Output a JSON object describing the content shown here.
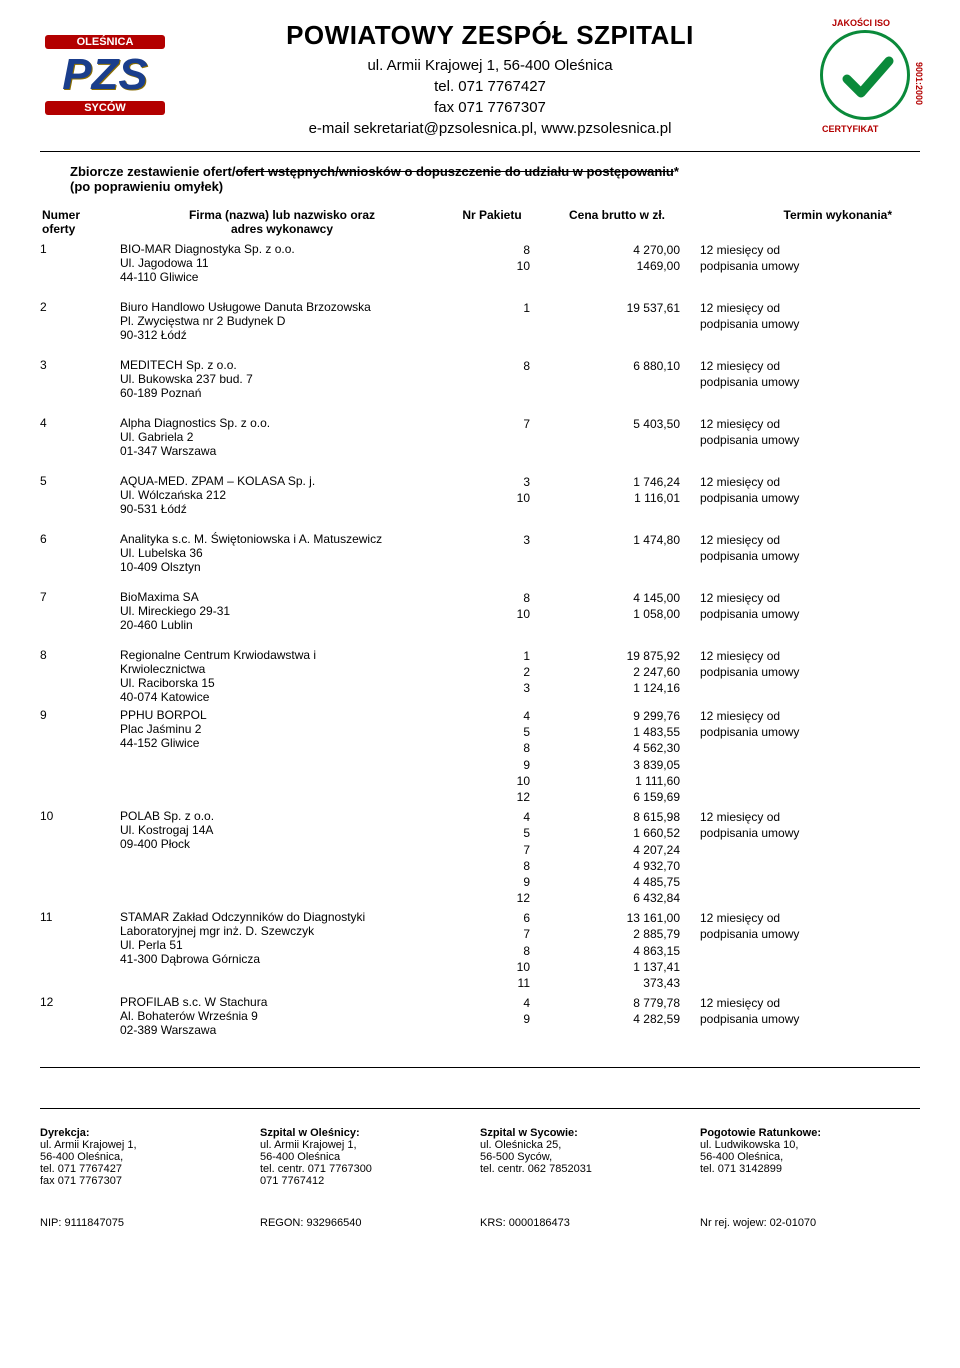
{
  "header": {
    "org_name": "POWIATOWY ZESPÓŁ SZPITALI",
    "address": "ul. Armii Krajowej 1, 56-400 Oleśnica",
    "tel": "tel. 071 7767427",
    "fax": "fax 071 7767307",
    "email_web": "e-mail sekretariat@pzsolesnica.pl, www.pzsolesnica.pl",
    "logo_left": {
      "top_banner": "OLEŚNICA",
      "main": "PZS",
      "bottom_banner": "SYCÓW"
    },
    "logo_right": {
      "top_text": "JAKOŚCI ISO",
      "side_text": "9001:2000",
      "bottom_text": "CERTYFIKAT",
      "check_color": "#0a8a3a"
    }
  },
  "title": {
    "prefix": "Zbiorcze zestawienie ofert/",
    "struck": "ofert wstępnych/wniosków o dopuszczenie do udziału w postępowaniu",
    "suffix": "*",
    "line2": "(po poprawieniu omyłek)"
  },
  "columns": {
    "num1": "Numer",
    "num2": "oferty",
    "firm1": "Firma (nazwa) lub nazwisko oraz",
    "firm2": "adres wykonawcy",
    "pak": "Nr Pakietu",
    "price": "Cena brutto w zł.",
    "term": "Termin wykonania*"
  },
  "term_text": "12 miesięcy od\npodpisania umowy",
  "offers": [
    {
      "num": "1",
      "firm": [
        "BIO-MAR Diagnostyka Sp. z o.o.",
        "Ul. Jagodowa 11",
        "44-110 Gliwice"
      ],
      "lines": [
        [
          "8",
          "4 270,00"
        ],
        [
          "10",
          "1469,00"
        ]
      ]
    },
    {
      "num": "2",
      "firm": [
        "Biuro Handlowo Usługowe Danuta Brzozowska",
        "Pl. Zwycięstwa nr 2 Budynek D",
        "90-312 Łódź"
      ],
      "lines": [
        [
          "1",
          "19 537,61"
        ]
      ]
    },
    {
      "num": "3",
      "firm": [
        "MEDITECH Sp. z o.o.",
        "Ul. Bukowska 237 bud. 7",
        "60-189 Poznań"
      ],
      "lines": [
        [
          "8",
          "6 880,10"
        ]
      ]
    },
    {
      "num": "4",
      "firm": [
        "Alpha Diagnostics Sp. z o.o.",
        "Ul. Gabriela 2",
        "01-347 Warszawa"
      ],
      "lines": [
        [
          "7",
          "5 403,50"
        ]
      ]
    },
    {
      "num": "5",
      "firm": [
        "AQUA-MED. ZPAM – KOLASA Sp. j.",
        "Ul. Wólczańska 212",
        "90-531 Łódź"
      ],
      "lines": [
        [
          "3",
          "1 746,24"
        ],
        [
          "10",
          "1 116,01"
        ]
      ]
    },
    {
      "num": "6",
      "firm": [
        "Analityka s.c. M. Świętoniowska i A. Matuszewicz",
        "Ul. Lubelska 36",
        "10-409 Olsztyn"
      ],
      "lines": [
        [
          "3",
          "1 474,80"
        ]
      ]
    },
    {
      "num": "7",
      "firm": [
        "BioMaxima SA",
        "Ul. Mireckiego 29-31",
        "20-460 Lublin"
      ],
      "lines": [
        [
          "8",
          "4 145,00"
        ],
        [
          "10",
          "1 058,00"
        ]
      ]
    },
    {
      "num": "8",
      "firm": [
        "Regionalne Centrum Krwiodawstwa i",
        "Krwiolecznictwa",
        "Ul. Raciborska 15",
        "40-074 Katowice"
      ],
      "lines": [
        [
          "1",
          "19 875,92"
        ],
        [
          "2",
          "2 247,60"
        ],
        [
          "3",
          "1 124,16"
        ]
      ]
    },
    {
      "num": "9",
      "firm": [
        "PPHU BORPOL",
        "Plac Jaśminu 2",
        "44-152 Gliwice"
      ],
      "lines": [
        [
          "4",
          "9 299,76"
        ],
        [
          "5",
          "1 483,55"
        ],
        [
          "8",
          "4 562,30"
        ],
        [
          "9",
          "3 839,05"
        ],
        [
          "10",
          "1 111,60"
        ],
        [
          "12",
          "6 159,69"
        ]
      ]
    },
    {
      "num": "10",
      "firm": [
        "POLAB Sp. z o.o.",
        "Ul. Kostrogaj 14A",
        "09-400 Płock"
      ],
      "lines": [
        [
          "4",
          "8 615,98"
        ],
        [
          "5",
          "1 660,52"
        ],
        [
          "7",
          "4 207,24"
        ],
        [
          "8",
          "4 932,70"
        ],
        [
          "9",
          "4 485,75"
        ],
        [
          "12",
          "6 432,84"
        ]
      ]
    },
    {
      "num": "11",
      "firm": [
        "STAMAR Zakład Odczynników do Diagnostyki",
        "Laboratoryjnej mgr inż. D. Szewczyk",
        "Ul. Perla 51",
        "41-300 Dąbrowa Górnicza"
      ],
      "lines": [
        [
          "6",
          "13 161,00"
        ],
        [
          "7",
          "2 885,79"
        ],
        [
          "8",
          "4 863,15"
        ],
        [
          "10",
          "1 137,41"
        ],
        [
          "11",
          "373,43"
        ]
      ]
    },
    {
      "num": "12",
      "firm": [
        "PROFILAB s.c. W Stachura",
        "Al. Bohaterów Września 9",
        "02-389 Warszawa"
      ],
      "lines": [
        [
          "4",
          "8 779,78"
        ],
        [
          "9",
          "4 282,59"
        ]
      ]
    }
  ],
  "footer": {
    "cols": [
      {
        "h": "Dyrekcja:",
        "lines": [
          "ul. Armii Krajowej 1,",
          "56-400 Oleśnica,",
          "tel. 071 7767427",
          "fax 071 7767307"
        ]
      },
      {
        "h": "Szpital w Oleśnicy:",
        "lines": [
          "ul. Armii Krajowej 1,",
          "56-400 Oleśnica",
          "tel. centr. 071 7767300",
          "071 7767412"
        ]
      },
      {
        "h": "Szpital w Sycowie:",
        "lines": [
          "ul. Oleśnicka 25,",
          "56-500 Syców,",
          "tel. centr. 062 7852031"
        ]
      },
      {
        "h": "Pogotowie Ratunkowe:",
        "lines": [
          "ul. Ludwikowska 10,",
          "56-400 Oleśnica,",
          "tel. 071 3142899"
        ]
      }
    ],
    "bottom": [
      "NIP: 9111847075",
      "REGON: 932966540",
      "KRS: 0000186473",
      "Nr rej. wojew: 02-01070"
    ]
  }
}
